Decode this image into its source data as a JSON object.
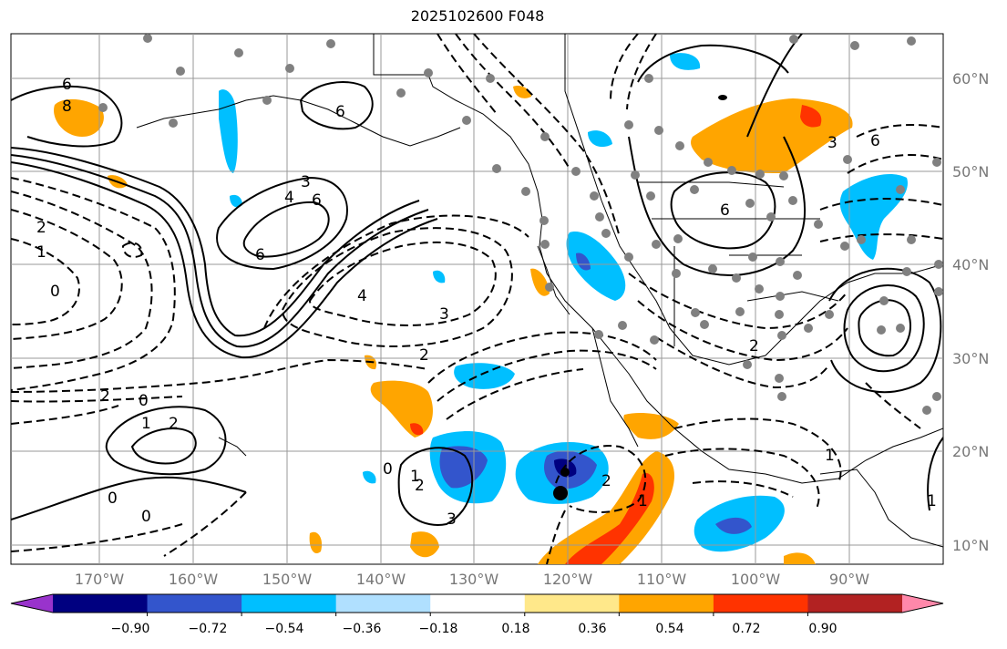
{
  "title": "2025102600 F048",
  "lat_labels": [
    "60°N",
    "50°N",
    "40°N",
    "30°N",
    "20°N",
    "10°N"
  ],
  "lon_labels": [
    "170°W",
    "160°W",
    "150°W",
    "140°W",
    "130°W",
    "120°W",
    "110°W",
    "100°W",
    "90°W"
  ],
  "contour_labels": [
    "6",
    "8",
    "3",
    "4",
    "6",
    "6",
    "4",
    "3",
    "2",
    "2",
    "1",
    "0",
    "2",
    "1",
    "0",
    "1",
    "2",
    "0",
    "0",
    "1",
    "2",
    "3",
    "6",
    "6",
    "6",
    "3",
    "2",
    "1",
    "0",
    "1",
    "2"
  ],
  "colorbar": {
    "colors": [
      "#9933cc",
      "#000080",
      "#3355cc",
      "#00bfff",
      "#b0e0ff",
      "#ffffff",
      "#ffe88a",
      "#ffa500",
      "#ff3300",
      "#b22222",
      "#ff88aa"
    ],
    "labels": [
      "−0.90",
      "−0.72",
      "−0.54",
      "−0.36",
      "−0.18",
      "0.18",
      "0.36",
      "0.54",
      "0.72",
      "0.90"
    ]
  },
  "colors": {
    "land": "#ffffff",
    "grid": "#999999",
    "contour": "#000000",
    "station_dot": "#808080",
    "positive_fill": "#ffa500",
    "negative_fill": "#00bfff"
  }
}
